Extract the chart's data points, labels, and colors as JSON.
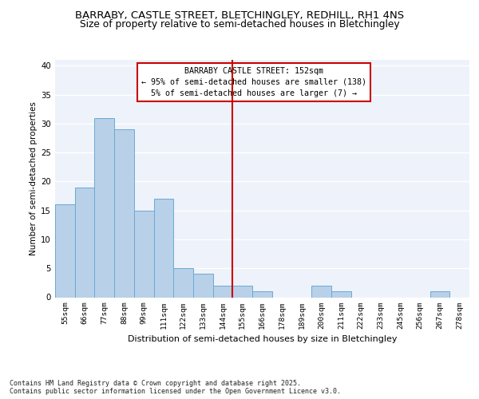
{
  "title1": "BARRABY, CASTLE STREET, BLETCHINGLEY, REDHILL, RH1 4NS",
  "title2": "Size of property relative to semi-detached houses in Bletchingley",
  "xlabel": "Distribution of semi-detached houses by size in Bletchingley",
  "ylabel": "Number of semi-detached properties",
  "categories": [
    "55sqm",
    "66sqm",
    "77sqm",
    "88sqm",
    "99sqm",
    "111sqm",
    "122sqm",
    "133sqm",
    "144sqm",
    "155sqm",
    "166sqm",
    "178sqm",
    "189sqm",
    "200sqm",
    "211sqm",
    "222sqm",
    "233sqm",
    "245sqm",
    "256sqm",
    "267sqm",
    "278sqm"
  ],
  "values": [
    16,
    19,
    31,
    29,
    15,
    17,
    5,
    4,
    2,
    2,
    1,
    0,
    0,
    2,
    1,
    0,
    0,
    0,
    0,
    1,
    0
  ],
  "bar_color": "#b8d0e8",
  "bar_edge_color": "#6aaad4",
  "vline_color": "#cc0000",
  "annotation_box_color": "#cc0000",
  "annotation_title": "BARRABY CASTLE STREET: 152sqm",
  "annotation_line1": "← 95% of semi-detached houses are smaller (138)",
  "annotation_line2": "5% of semi-detached houses are larger (7) →",
  "ylim": [
    0,
    41
  ],
  "yticks": [
    0,
    5,
    10,
    15,
    20,
    25,
    30,
    35,
    40
  ],
  "bg_color": "#eef2fa",
  "footer": "Contains HM Land Registry data © Crown copyright and database right 2025.\nContains public sector information licensed under the Open Government Licence v3.0.",
  "title_fontsize": 9.5,
  "subtitle_fontsize": 8.8,
  "annotation_fontsize": 7.2,
  "xlabel_fontsize": 8.0,
  "ylabel_fontsize": 7.5,
  "tick_fontsize": 6.8,
  "footer_fontsize": 6.0
}
